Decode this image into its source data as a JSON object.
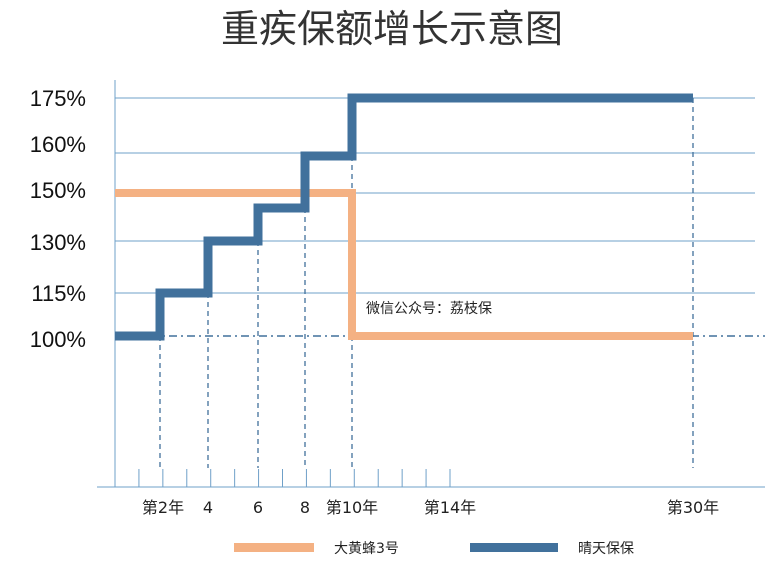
{
  "chart_data": {
    "type": "line",
    "title": "重疾保额增长示意图",
    "y_tick_labels": [
      "175%",
      "160%",
      "150%",
      "130%",
      "115%",
      "100%"
    ],
    "x_tick_labels": [
      {
        "x": 2,
        "label": "第2年"
      },
      {
        "x": 4,
        "label": "4"
      },
      {
        "x": 6,
        "label": "6"
      },
      {
        "x": 8,
        "label": "8"
      },
      {
        "x": 10,
        "label": "第10年"
      },
      {
        "x": 14,
        "label": "第14年"
      },
      {
        "x": 30,
        "label": "第30年"
      }
    ],
    "annotation": "微信公众号：荔枝保",
    "series": [
      {
        "name": "大黄蜂3号",
        "color": "#F4B183",
        "points": [
          [
            0,
            150
          ],
          [
            10,
            150
          ],
          [
            10,
            100
          ],
          [
            30,
            100
          ]
        ]
      },
      {
        "name": "晴天保保",
        "color": "#41719C",
        "points": [
          [
            0,
            100
          ],
          [
            2,
            100
          ],
          [
            2,
            115
          ],
          [
            4,
            115
          ],
          [
            4,
            130
          ],
          [
            6,
            130
          ],
          [
            6,
            145
          ],
          [
            8,
            145
          ],
          [
            8,
            160
          ],
          [
            10,
            160
          ],
          [
            10,
            175
          ],
          [
            30,
            175
          ]
        ]
      }
    ],
    "grid": "horizontal",
    "legend": "bottom"
  }
}
